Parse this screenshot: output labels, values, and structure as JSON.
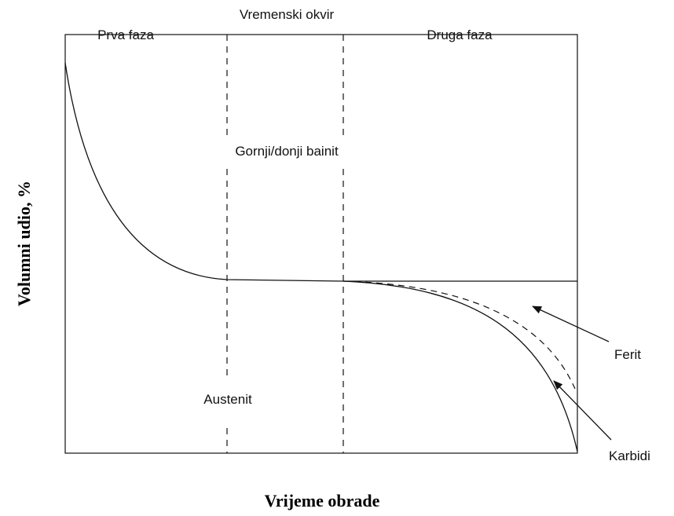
{
  "header": {
    "left": "Prva faza",
    "center": "Vremenski okvir",
    "right": "Druga faza"
  },
  "regions": {
    "middle": "Gornji/donji bainit",
    "bottom": "Austenit"
  },
  "annotations": {
    "ferrite": "Ferit",
    "carbides": "Karbidi"
  },
  "axes": {
    "y_label": "Volumni udio, %",
    "x_label": "Vrijeme obrade"
  }
}
